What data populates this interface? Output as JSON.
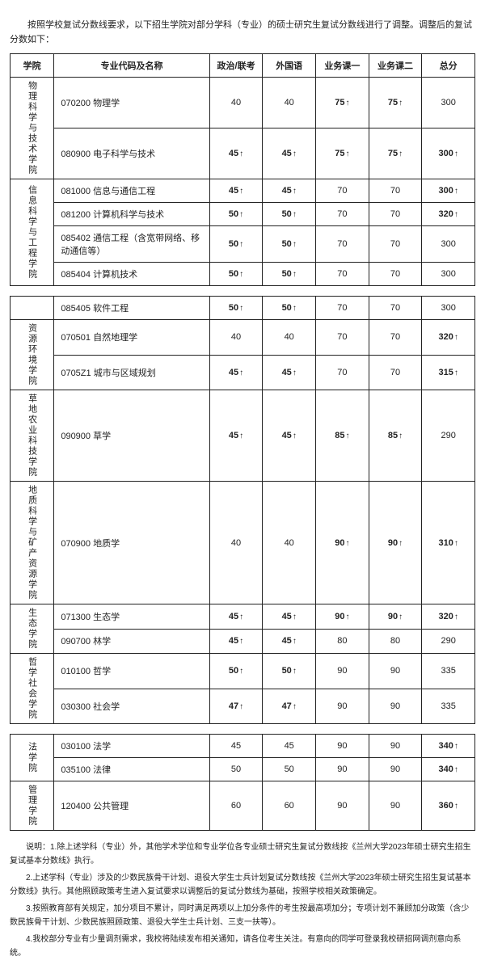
{
  "intro": "按照学校复试分数线要求，以下招生学院对部分学科（专业）的硕士研究生复试分数线进行了调整。调整后的复试分数如下：",
  "headers": {
    "college": "学院",
    "major": "专业代码及名称",
    "politics": "政治/联考",
    "foreign": "外国语",
    "course1": "业务课一",
    "course2": "业务课二",
    "total": "总分"
  },
  "t1": {
    "g1": {
      "college": "物理科学与技术学院",
      "r1": {
        "major": "070200 物理学",
        "c1": {
          "v": "40"
        },
        "c2": {
          "v": "40"
        },
        "c3": {
          "v": "75",
          "b": 1,
          "a": 1
        },
        "c4": {
          "v": "75",
          "b": 1,
          "a": 1
        },
        "c5": {
          "v": "300"
        }
      },
      "r2": {
        "major": "080900 电子科学与技术",
        "c1": {
          "v": "45",
          "b": 1,
          "a": 1
        },
        "c2": {
          "v": "45",
          "b": 1,
          "a": 1
        },
        "c3": {
          "v": "75",
          "b": 1,
          "a": 1
        },
        "c4": {
          "v": "75",
          "b": 1,
          "a": 1
        },
        "c5": {
          "v": "300",
          "b": 1,
          "a": 1
        }
      }
    },
    "g2": {
      "college": "信息科学与工程学院",
      "r1": {
        "major": "081000 信息与通信工程",
        "c1": {
          "v": "45",
          "b": 1,
          "a": 1
        },
        "c2": {
          "v": "45",
          "b": 1,
          "a": 1
        },
        "c3": {
          "v": "70"
        },
        "c4": {
          "v": "70"
        },
        "c5": {
          "v": "300",
          "b": 1,
          "a": 1
        }
      },
      "r2": {
        "major": "081200 计算机科学与技术",
        "c1": {
          "v": "50",
          "b": 1,
          "a": 1
        },
        "c2": {
          "v": "50",
          "b": 1,
          "a": 1
        },
        "c3": {
          "v": "70"
        },
        "c4": {
          "v": "70"
        },
        "c5": {
          "v": "320",
          "b": 1,
          "a": 1
        }
      },
      "r3": {
        "major": "085402 通信工程（含宽带网络、移动通信等）",
        "c1": {
          "v": "50",
          "b": 1,
          "a": 1
        },
        "c2": {
          "v": "50",
          "b": 1,
          "a": 1
        },
        "c3": {
          "v": "70"
        },
        "c4": {
          "v": "70"
        },
        "c5": {
          "v": "300"
        }
      },
      "r4": {
        "major": "085404 计算机技术",
        "c1": {
          "v": "50",
          "b": 1,
          "a": 1
        },
        "c2": {
          "v": "50",
          "b": 1,
          "a": 1
        },
        "c3": {
          "v": "70"
        },
        "c4": {
          "v": "70"
        },
        "c5": {
          "v": "300"
        }
      }
    }
  },
  "t2": {
    "g1": {
      "r1": {
        "major": "085405 软件工程",
        "c1": {
          "v": "50",
          "b": 1,
          "a": 1
        },
        "c2": {
          "v": "50",
          "b": 1,
          "a": 1
        },
        "c3": {
          "v": "70"
        },
        "c4": {
          "v": "70"
        },
        "c5": {
          "v": "300"
        }
      }
    },
    "g2": {
      "college": "资源环境学院",
      "r1": {
        "major": "070501 自然地理学",
        "c1": {
          "v": "40"
        },
        "c2": {
          "v": "40"
        },
        "c3": {
          "v": "70"
        },
        "c4": {
          "v": "70"
        },
        "c5": {
          "v": "320",
          "b": 1,
          "a": 1
        }
      },
      "r2": {
        "major": "0705Z1 城市与区域规划",
        "c1": {
          "v": "45",
          "b": 1,
          "a": 1
        },
        "c2": {
          "v": "45",
          "b": 1,
          "a": 1
        },
        "c3": {
          "v": "70"
        },
        "c4": {
          "v": "70"
        },
        "c5": {
          "v": "315",
          "b": 1,
          "a": 1
        }
      }
    },
    "g3": {
      "college": "草地农业科技学院",
      "r1": {
        "major": "090900 草学",
        "c1": {
          "v": "45",
          "b": 1,
          "a": 1
        },
        "c2": {
          "v": "45",
          "b": 1,
          "a": 1
        },
        "c3": {
          "v": "85",
          "b": 1,
          "a": 1
        },
        "c4": {
          "v": "85",
          "b": 1,
          "a": 1
        },
        "c5": {
          "v": "290"
        }
      }
    },
    "g4": {
      "college": "地质科学与矿产资源学院",
      "r1": {
        "major": "070900 地质学",
        "c1": {
          "v": "40"
        },
        "c2": {
          "v": "40"
        },
        "c3": {
          "v": "90",
          "b": 1,
          "a": 1
        },
        "c4": {
          "v": "90",
          "b": 1,
          "a": 1
        },
        "c5": {
          "v": "310",
          "b": 1,
          "a": 1
        }
      }
    },
    "g5": {
      "college": "生态学院",
      "r1": {
        "major": "071300 生态学",
        "c1": {
          "v": "45",
          "b": 1,
          "a": 1
        },
        "c2": {
          "v": "45",
          "b": 1,
          "a": 1
        },
        "c3": {
          "v": "90",
          "b": 1,
          "a": 1
        },
        "c4": {
          "v": "90",
          "b": 1,
          "a": 1
        },
        "c5": {
          "v": "320",
          "b": 1,
          "a": 1
        }
      },
      "r2": {
        "major": "090700 林学",
        "c1": {
          "v": "45",
          "b": 1,
          "a": 1
        },
        "c2": {
          "v": "45",
          "b": 1,
          "a": 1
        },
        "c3": {
          "v": "80"
        },
        "c4": {
          "v": "80"
        },
        "c5": {
          "v": "290"
        }
      }
    },
    "g6": {
      "college": "哲学社会学院",
      "r1": {
        "major": "010100 哲学",
        "c1": {
          "v": "50",
          "b": 1,
          "a": 1
        },
        "c2": {
          "v": "50",
          "b": 1,
          "a": 1
        },
        "c3": {
          "v": "90"
        },
        "c4": {
          "v": "90"
        },
        "c5": {
          "v": "335"
        }
      },
      "r2": {
        "major": "030300 社会学",
        "c1": {
          "v": "47",
          "b": 1,
          "a": 1
        },
        "c2": {
          "v": "47",
          "b": 1,
          "a": 1
        },
        "c3": {
          "v": "90"
        },
        "c4": {
          "v": "90"
        },
        "c5": {
          "v": "335"
        }
      }
    }
  },
  "t3": {
    "g1": {
      "college": "法学院",
      "r1": {
        "major": "030100 法学",
        "c1": {
          "v": "45"
        },
        "c2": {
          "v": "45"
        },
        "c3": {
          "v": "90"
        },
        "c4": {
          "v": "90"
        },
        "c5": {
          "v": "340",
          "b": 1,
          "a": 1
        }
      },
      "r2": {
        "major": "035100 法律",
        "c1": {
          "v": "50"
        },
        "c2": {
          "v": "50"
        },
        "c3": {
          "v": "90"
        },
        "c4": {
          "v": "90"
        },
        "c5": {
          "v": "340",
          "b": 1,
          "a": 1
        }
      }
    },
    "g2": {
      "college": "管理学院",
      "r1": {
        "major": "120400 公共管理",
        "c1": {
          "v": "60"
        },
        "c2": {
          "v": "60"
        },
        "c3": {
          "v": "90"
        },
        "c4": {
          "v": "90"
        },
        "c5": {
          "v": "360",
          "b": 1,
          "a": 1
        }
      }
    }
  },
  "notes": {
    "n1": "说明：1.除上述学科（专业）外，其他学术学位和专业学位各专业硕士研究生复试分数线按《兰州大学2023年硕士研究生招生复试基本分数线》执行。",
    "n2": "2.上述学科（专业）涉及的少数民族骨干计划、退役大学生士兵计划复试分数线按《兰州大学2023年硕士研究生招生复试基本分数线》执行。其他照顾政策考生进入复试要求以调整后的复试分数线为基础，按照学校相关政策确定。",
    "n3": "3.按照教育部有关规定，加分项目不累计，同时满足两项以上加分条件的考生按最高项加分；专项计划不兼顾加分政策（含少数民族骨干计划、少数民族照顾政策、退役大学生士兵计划、三支一扶等）。",
    "n4": "4.我校部分专业有少量调剂需求，我校将陆续发布相关通知，请各位考生关注。有意向的同学可登录我校研招网调剂意向系统。"
  }
}
